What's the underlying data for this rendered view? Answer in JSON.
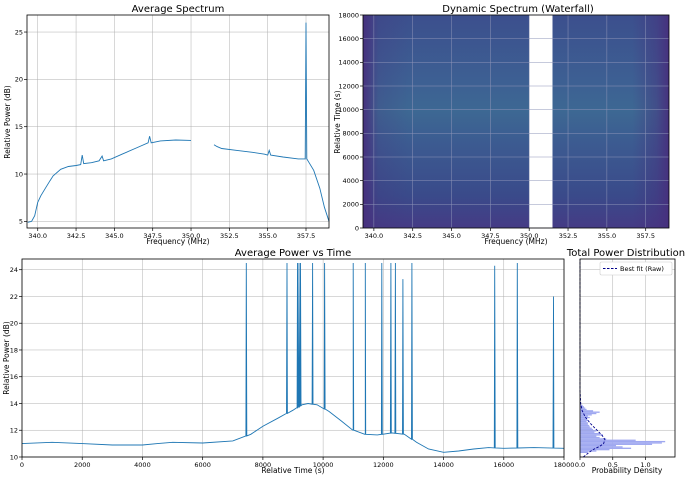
{
  "colors": {
    "line": "#1f77b4",
    "grid": "#b0b0b0",
    "fit": "#00008b",
    "hist": "#9fa8f0",
    "waterfall_base": "#3b4e8c",
    "waterfall_gap": "#ffffff"
  },
  "chart_data": [
    {
      "id": "average_spectrum",
      "type": "line",
      "title": "Average Spectrum",
      "xlabel": "Frequency (MHz)",
      "ylabel": "Relative Power (dB)",
      "xlim": [
        339.3,
        359.0
      ],
      "ylim": [
        4.3,
        26.8
      ],
      "x_ticks": [
        340.0,
        342.5,
        345.0,
        347.5,
        350.0,
        352.5,
        355.0,
        357.5
      ],
      "x_tick_labels": [
        "340.0",
        "342.5",
        "345.0",
        "347.5",
        "350.0",
        "352.5",
        "355.0",
        "357.5"
      ],
      "y_ticks": [
        5,
        10,
        15,
        20,
        25
      ],
      "y_tick_labels": [
        "5",
        "10",
        "15",
        "20",
        "25"
      ],
      "grid": true,
      "series": [
        {
          "segments": [
            [
              [
                339.35,
                4.9
              ],
              [
                339.6,
                5.0
              ],
              [
                339.8,
                5.6
              ],
              [
                340.0,
                7.0
              ],
              [
                340.2,
                7.7
              ],
              [
                340.5,
                8.5
              ],
              [
                340.8,
                9.3
              ],
              [
                341.0,
                9.8
              ],
              [
                341.5,
                10.5
              ],
              [
                342.0,
                10.8
              ],
              [
                342.5,
                10.9
              ],
              [
                342.8,
                11.0
              ],
              [
                342.9,
                12.0
              ],
              [
                343.0,
                11.1
              ],
              [
                343.5,
                11.2
              ],
              [
                344.0,
                11.4
              ],
              [
                344.2,
                11.9
              ],
              [
                344.3,
                11.4
              ],
              [
                344.8,
                11.6
              ],
              [
                345.5,
                12.1
              ],
              [
                346.5,
                12.8
              ],
              [
                347.2,
                13.3
              ],
              [
                347.3,
                14.0
              ],
              [
                347.4,
                13.3
              ],
              [
                348.0,
                13.5
              ],
              [
                349.0,
                13.6
              ],
              [
                350.0,
                13.55
              ]
            ],
            [
              [
                351.5,
                13.1
              ],
              [
                351.7,
                12.9
              ],
              [
                352.0,
                12.7
              ],
              [
                353.0,
                12.5
              ],
              [
                354.0,
                12.3
              ],
              [
                354.8,
                12.1
              ],
              [
                355.0,
                12.0
              ],
              [
                355.1,
                12.5
              ],
              [
                355.2,
                12.0
              ],
              [
                356.0,
                11.8
              ],
              [
                357.0,
                11.6
              ],
              [
                357.45,
                11.6
              ],
              [
                357.5,
                26.0
              ],
              [
                357.55,
                11.6
              ],
              [
                357.7,
                11.2
              ],
              [
                358.0,
                10.4
              ],
              [
                358.4,
                8.5
              ],
              [
                358.7,
                6.5
              ],
              [
                359.0,
                5.0
              ]
            ]
          ]
        }
      ]
    },
    {
      "id": "dynamic_spectrum",
      "type": "heatmap",
      "title": "Dynamic Spectrum (Waterfall)",
      "xlabel": "Frequency (MHz)",
      "ylabel": "Relative Time (s)",
      "xlim": [
        339.3,
        359.0
      ],
      "ylim": [
        0,
        18000
      ],
      "x_ticks": [
        340.0,
        342.5,
        345.0,
        347.5,
        350.0,
        352.5,
        355.0,
        357.5
      ],
      "x_tick_labels": [
        "340.0",
        "342.5",
        "345.0",
        "347.5",
        "350.0",
        "352.5",
        "355.0",
        "357.5"
      ],
      "y_ticks": [
        0,
        2000,
        4000,
        6000,
        8000,
        10000,
        12000,
        14000,
        16000,
        18000
      ],
      "y_tick_labels": [
        "0",
        "2000",
        "4000",
        "6000",
        "8000",
        "10000",
        "12000",
        "14000",
        "16000",
        "18000"
      ],
      "masked_band_mhz": [
        350.0,
        351.5
      ],
      "grid": true
    },
    {
      "id": "average_power_vs_time",
      "type": "line",
      "title": "Average Power vs Time",
      "xlabel": "Relative Time (s)",
      "ylabel": "Relative Power (dB)",
      "xlim": [
        0,
        18000
      ],
      "ylim": [
        10.0,
        24.8
      ],
      "x_ticks": [
        0,
        2000,
        4000,
        6000,
        8000,
        10000,
        12000,
        14000,
        16000,
        18000
      ],
      "x_tick_labels": [
        "0",
        "2000",
        "4000",
        "6000",
        "8000",
        "10000",
        "12000",
        "14000",
        "16000",
        "18000"
      ],
      "y_ticks": [
        10,
        12,
        14,
        16,
        18,
        20,
        22,
        24
      ],
      "y_tick_labels": [
        "10",
        "12",
        "14",
        "16",
        "18",
        "20",
        "22",
        "24"
      ],
      "grid": true,
      "baseline": [
        [
          0,
          11.0
        ],
        [
          1000,
          11.1
        ],
        [
          2000,
          11.0
        ],
        [
          3000,
          10.9
        ],
        [
          4000,
          10.9
        ],
        [
          4500,
          11.0
        ],
        [
          5000,
          11.1
        ],
        [
          6000,
          11.05
        ],
        [
          7000,
          11.2
        ],
        [
          7600,
          11.7
        ],
        [
          8000,
          12.3
        ],
        [
          8500,
          12.9
        ],
        [
          9000,
          13.5
        ],
        [
          9300,
          13.9
        ],
        [
          9500,
          14.0
        ],
        [
          9800,
          13.9
        ],
        [
          10200,
          13.4
        ],
        [
          10600,
          12.7
        ],
        [
          11000,
          12.0
        ],
        [
          11400,
          11.7
        ],
        [
          11800,
          11.65
        ],
        [
          12300,
          11.8
        ],
        [
          12700,
          11.7
        ],
        [
          13100,
          11.1
        ],
        [
          13500,
          10.6
        ],
        [
          14000,
          10.35
        ],
        [
          14500,
          10.45
        ],
        [
          15000,
          10.6
        ],
        [
          15500,
          10.7
        ],
        [
          16000,
          10.65
        ],
        [
          17000,
          10.7
        ],
        [
          18000,
          10.65
        ]
      ],
      "spikes": [
        [
          7450,
          24.5
        ],
        [
          8800,
          24.5
        ],
        [
          9150,
          24.5
        ],
        [
          9200,
          24.5
        ],
        [
          9250,
          24.5
        ],
        [
          9650,
          24.5
        ],
        [
          10050,
          24.5
        ],
        [
          11000,
          24.5
        ],
        [
          11400,
          24.5
        ],
        [
          11950,
          24.5
        ],
        [
          12250,
          24.5
        ],
        [
          12400,
          24.5
        ],
        [
          12650,
          23.3
        ],
        [
          12950,
          24.5
        ],
        [
          15700,
          24.3
        ],
        [
          16450,
          24.5
        ],
        [
          17650,
          22.0
        ]
      ]
    },
    {
      "id": "total_power_distribution",
      "type": "bar",
      "orientation": "horizontal",
      "title": "Total Power Distribution",
      "xlabel": "Probability Density",
      "ylabel": "",
      "xlim": [
        0,
        1.45
      ],
      "ylim": [
        10.0,
        24.8
      ],
      "x_ticks": [
        0.0,
        0.5,
        1.0
      ],
      "x_tick_labels": [
        "0.0",
        "0.5",
        "1.0"
      ],
      "legend": {
        "label": "Best fit (Raw)",
        "placement": "top-right"
      },
      "grid": true,
      "bin_width": 0.1,
      "hist": [
        [
          10.3,
          0.12
        ],
        [
          10.4,
          0.25
        ],
        [
          10.5,
          0.45
        ],
        [
          10.6,
          0.78
        ],
        [
          10.7,
          0.65
        ],
        [
          10.8,
          0.55
        ],
        [
          10.9,
          1.1
        ],
        [
          11.0,
          1.25
        ],
        [
          11.1,
          1.3
        ],
        [
          11.2,
          0.85
        ],
        [
          11.3,
          0.4
        ],
        [
          11.4,
          0.3
        ],
        [
          11.5,
          0.25
        ],
        [
          11.6,
          0.35
        ],
        [
          11.7,
          0.3
        ],
        [
          11.8,
          0.22
        ],
        [
          11.9,
          0.25
        ],
        [
          12.0,
          0.2
        ],
        [
          12.1,
          0.18
        ],
        [
          12.2,
          0.15
        ],
        [
          12.3,
          0.14
        ],
        [
          12.4,
          0.12
        ],
        [
          12.5,
          0.12
        ],
        [
          12.6,
          0.1
        ],
        [
          12.7,
          0.12
        ],
        [
          12.8,
          0.1
        ],
        [
          12.9,
          0.15
        ],
        [
          13.0,
          0.12
        ],
        [
          13.1,
          0.18
        ],
        [
          13.2,
          0.25
        ],
        [
          13.3,
          0.3
        ],
        [
          13.4,
          0.2
        ],
        [
          13.5,
          0.1
        ],
        [
          13.6,
          0.08
        ],
        [
          13.7,
          0.06
        ],
        [
          13.8,
          0.04
        ]
      ],
      "fit_curve": [
        [
          10.0,
          0.05
        ],
        [
          10.5,
          0.18
        ],
        [
          10.8,
          0.3
        ],
        [
          11.0,
          0.36
        ],
        [
          11.3,
          0.38
        ],
        [
          11.6,
          0.34
        ],
        [
          12.0,
          0.26
        ],
        [
          12.5,
          0.16
        ],
        [
          13.0,
          0.08
        ],
        [
          13.5,
          0.03
        ],
        [
          14.0,
          0.01
        ],
        [
          15.0,
          0.0
        ],
        [
          24.8,
          0.0
        ]
      ]
    }
  ]
}
